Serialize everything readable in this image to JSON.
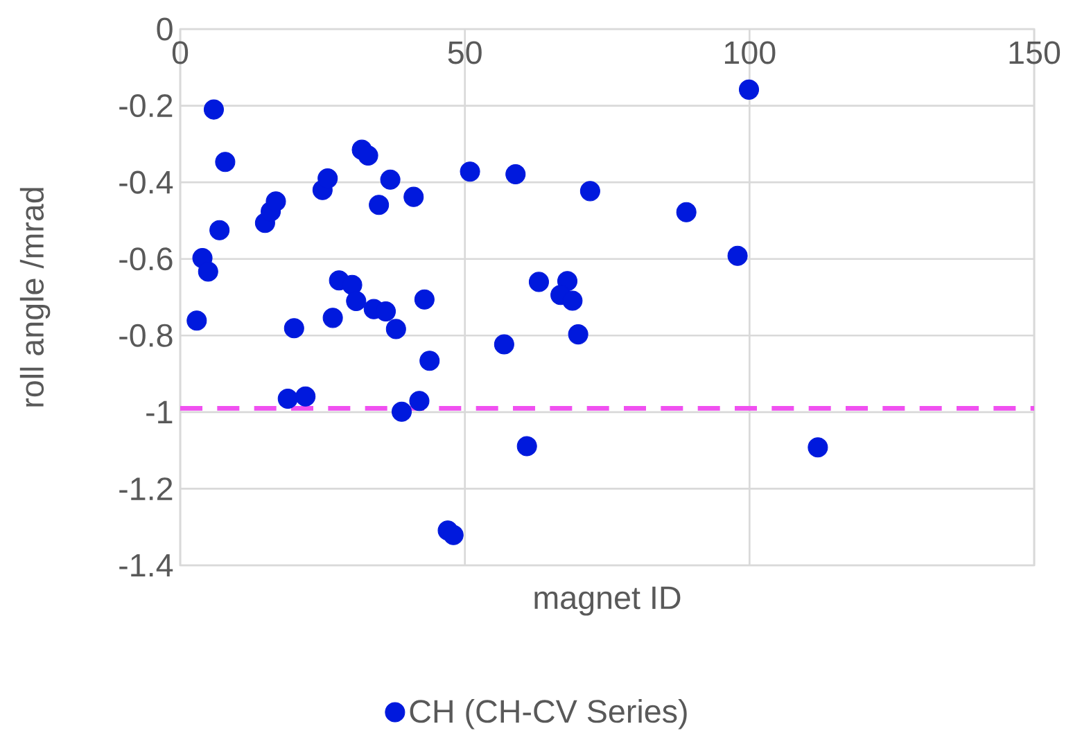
{
  "chart_data": {
    "type": "scatter",
    "xlabel": "magnet ID",
    "ylabel": "roll angle /mrad",
    "xlim": [
      0,
      150
    ],
    "xticks": [
      0,
      50,
      100,
      150
    ],
    "ylim": [
      -1.4,
      0
    ],
    "yticks": [
      -1.4,
      -1.2,
      -1,
      -0.8,
      -0.6,
      -0.4,
      -0.2,
      0
    ],
    "grid": true,
    "legend": "bottom",
    "marker": "circle",
    "series": [
      {
        "name": "CH (CH-CV Series)",
        "color": "#0019dd",
        "x": [
          5.9,
          7.9,
          6.9,
          3.9,
          4.9,
          2.9,
          14.9,
          15.9,
          16.8,
          25.0,
          25.9,
          31.9,
          33.0,
          36.9,
          34.9,
          41.0,
          50.9,
          27.9,
          30.2,
          30.9,
          34.0,
          36.1,
          37.9,
          42.9,
          26.8,
          20.0,
          43.8,
          56.9,
          18.9,
          22.0,
          38.9,
          42.0,
          47.0,
          48.0,
          58.9,
          72.0,
          88.9,
          97.9,
          99.9,
          63.0,
          68.0,
          66.8,
          68.9,
          69.9,
          60.9,
          112.0
        ],
        "values": [
          -0.21,
          -0.347,
          -0.525,
          -0.598,
          -0.633,
          -0.761,
          -0.506,
          -0.476,
          -0.45,
          -0.42,
          -0.39,
          -0.315,
          -0.33,
          -0.393,
          -0.459,
          -0.438,
          -0.372,
          -0.656,
          -0.668,
          -0.71,
          -0.731,
          -0.737,
          -0.783,
          -0.706,
          -0.754,
          -0.781,
          -0.866,
          -0.823,
          -0.965,
          -0.959,
          -0.999,
          -0.971,
          -1.309,
          -1.321,
          -0.379,
          -0.423,
          -0.478,
          -0.592,
          -0.158,
          -0.66,
          -0.658,
          -0.694,
          -0.709,
          -0.797,
          -1.089,
          -1.092
        ]
      }
    ],
    "ref_lines": [
      {
        "axis": "y",
        "value": -0.99,
        "color": "#f050f0",
        "line_style": "dashed"
      }
    ]
  }
}
